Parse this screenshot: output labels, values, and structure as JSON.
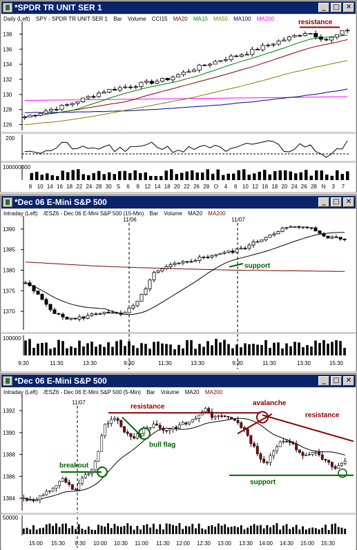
{
  "windows": [
    {
      "title": "*SPDR TR UNIT SER 1",
      "info": [
        "Daily (Left)",
        "SPY - SPDR TR UNIT SER 1",
        "Bar",
        "Volume",
        "CCI15",
        "MA20",
        "MA10",
        "MA50",
        "MA100",
        "MA200"
      ],
      "price_ticks": [
        "138",
        "136",
        "134",
        "132",
        "130",
        "128",
        "126"
      ],
      "cci_tick": "200",
      "volume_tick": "100000000",
      "x_labels": [
        "8",
        "10",
        "14",
        "16",
        "18",
        "22",
        "24",
        "28",
        "30",
        "S",
        "6",
        "8",
        "12",
        "14",
        "18",
        "20",
        "22",
        "26",
        "28",
        "O",
        "4",
        "6",
        "10",
        "12",
        "16",
        "18",
        "20",
        "24",
        "26",
        "28",
        "N",
        "3",
        "7"
      ],
      "annotations": {
        "resistance": "resistance"
      }
    },
    {
      "title": "*Dec 06  E-Mini S&P 500",
      "info": [
        "Intraday (Left)",
        "/ESZ6 - Dec 06  E-Mini S&P 500 (15-Min)",
        "Bar",
        "Volume",
        "MA20",
        "MA200"
      ],
      "price_ticks": [
        "1390",
        "1385",
        "1380",
        "1375",
        "1370"
      ],
      "volume_tick": "100000",
      "date_markers": [
        "11/06",
        "11/07"
      ],
      "x_labels": [
        "9:30",
        "11:30",
        "13:30",
        "9:30",
        "11:30",
        "13:30",
        "9:30",
        "11:30",
        "13:30",
        "15:30"
      ],
      "annotations": {
        "support": "support"
      }
    },
    {
      "title": "*Dec 06  E-Mini S&P 500",
      "info": [
        "Intraday (Left)",
        "/ESZ6 - Dec 06  E-Mini S&P 500 (5-Min)",
        "Bar",
        "Volume",
        "MA20",
        "MA200"
      ],
      "price_ticks": [
        "1392",
        "1390",
        "1388",
        "1386",
        "1384"
      ],
      "volume_tick": "50000",
      "date_markers": [
        "11/07"
      ],
      "x_labels": [
        "15:00",
        "15:30",
        "9:30",
        "10:00",
        "10:30",
        "11:00",
        "11:30",
        "12:00",
        "12:30",
        "13:00",
        "13:30",
        "14:00",
        "14:30",
        "15:00",
        "15:30"
      ],
      "annotations": {
        "resistance": "resistance",
        "resistance2": "resistance",
        "avalanche": "avalanche",
        "bull_flag": "bull flag",
        "breakout": "breakout",
        "support": "support"
      }
    }
  ],
  "colors": {
    "ma20": "#800000",
    "ma10": "#008000",
    "ma50": "#808000",
    "ma100": "#000080",
    "ma200": "#ff00ff",
    "title_bg": "#0a246a",
    "annot_red": "#8b0000",
    "annot_green": "#006400"
  }
}
